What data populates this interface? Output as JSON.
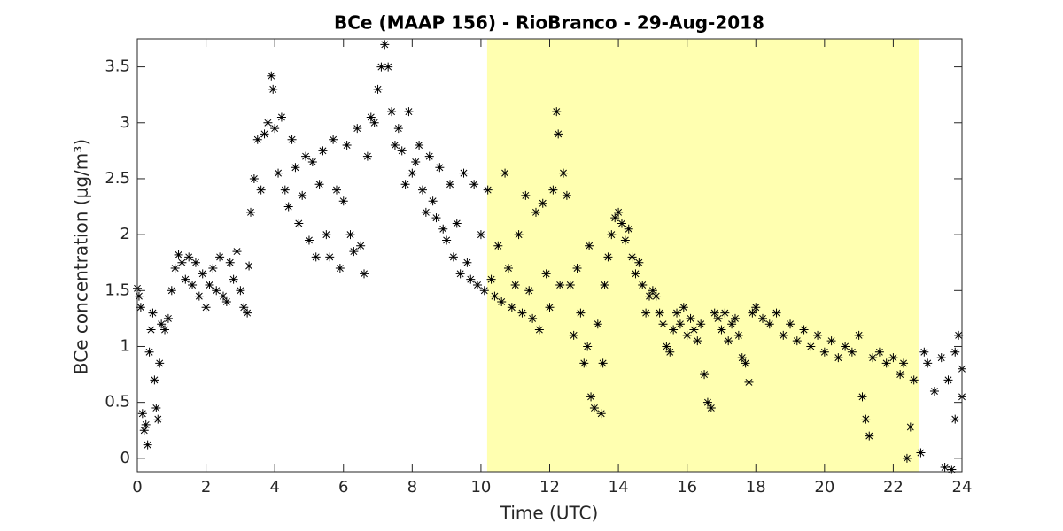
{
  "chart_data": {
    "type": "scatter",
    "title": "BCe (MAAP 156) - RioBranco - 29-Aug-2018",
    "x_label": "Time (UTC)",
    "y_label": "BCe concentration (μg/m³)",
    "xlim": [
      0,
      24
    ],
    "ylim": [
      -0.12,
      3.75
    ],
    "xticks": [
      0,
      2,
      4,
      6,
      8,
      10,
      12,
      14,
      16,
      18,
      20,
      22,
      24
    ],
    "yticks": [
      0,
      0.5,
      1,
      1.5,
      2,
      2.5,
      3,
      3.5
    ],
    "shade": [
      10.18,
      22.76
    ],
    "shade_color": "#ffffb0",
    "color": "#000000",
    "x": [
      0.0,
      0.05,
      0.1,
      0.15,
      0.2,
      0.25,
      0.3,
      0.35,
      0.4,
      0.45,
      0.5,
      0.55,
      0.6,
      0.65,
      0.7,
      0.8,
      0.9,
      1.0,
      1.1,
      1.2,
      1.3,
      1.4,
      1.5,
      1.6,
      1.7,
      1.8,
      1.9,
      2.0,
      2.1,
      2.2,
      2.3,
      2.4,
      2.5,
      2.6,
      2.7,
      2.8,
      2.9,
      3.0,
      3.1,
      3.2,
      3.25,
      3.3,
      3.4,
      3.5,
      3.6,
      3.7,
      3.8,
      3.9,
      3.95,
      4.0,
      4.1,
      4.2,
      4.3,
      4.4,
      4.5,
      4.6,
      4.7,
      4.8,
      4.9,
      5.0,
      5.1,
      5.2,
      5.3,
      5.4,
      5.5,
      5.6,
      5.7,
      5.8,
      5.9,
      6.0,
      6.1,
      6.2,
      6.3,
      6.4,
      6.5,
      6.6,
      6.7,
      6.8,
      6.9,
      7.0,
      7.1,
      7.2,
      7.3,
      7.4,
      7.5,
      7.6,
      7.7,
      7.8,
      7.9,
      8.0,
      8.1,
      8.2,
      8.3,
      8.4,
      8.5,
      8.6,
      8.7,
      8.8,
      8.9,
      9.0,
      9.1,
      9.2,
      9.3,
      9.4,
      9.5,
      9.6,
      9.7,
      9.8,
      9.9,
      10.0,
      10.1,
      10.2,
      10.3,
      10.4,
      10.5,
      10.6,
      10.7,
      10.8,
      10.9,
      11.0,
      11.1,
      11.2,
      11.3,
      11.4,
      11.5,
      11.6,
      11.7,
      11.8,
      11.9,
      12.0,
      12.1,
      12.2,
      12.25,
      12.3,
      12.4,
      12.5,
      12.6,
      12.7,
      12.8,
      12.9,
      13.0,
      13.1,
      13.15,
      13.2,
      13.3,
      13.4,
      13.5,
      13.55,
      13.6,
      13.7,
      13.8,
      13.9,
      14.0,
      14.1,
      14.2,
      14.3,
      14.4,
      14.5,
      14.6,
      14.7,
      14.8,
      14.9,
      15.0,
      15.1,
      15.2,
      15.3,
      15.4,
      15.5,
      15.6,
      15.7,
      15.8,
      15.9,
      16.0,
      16.1,
      16.2,
      16.3,
      16.4,
      16.5,
      16.6,
      16.7,
      16.8,
      16.9,
      17.0,
      17.1,
      17.2,
      17.3,
      17.4,
      17.5,
      17.6,
      17.7,
      17.8,
      17.9,
      18.0,
      18.2,
      18.4,
      18.6,
      18.8,
      19.0,
      19.2,
      19.4,
      19.6,
      19.8,
      20.0,
      20.2,
      20.4,
      20.6,
      20.8,
      21.0,
      21.1,
      21.2,
      21.3,
      21.4,
      21.6,
      21.8,
      22.0,
      22.2,
      22.3,
      22.4,
      22.5,
      22.6,
      22.8,
      22.9,
      23.0,
      23.2,
      23.4,
      23.5,
      23.6,
      23.7,
      23.8,
      23.8,
      23.9,
      24.0,
      24.0
    ],
    "values": [
      1.52,
      1.45,
      1.35,
      0.4,
      0.25,
      0.3,
      0.12,
      0.95,
      1.15,
      1.3,
      0.7,
      0.45,
      0.35,
      0.85,
      1.2,
      1.15,
      1.25,
      1.5,
      1.7,
      1.82,
      1.75,
      1.6,
      1.8,
      1.55,
      1.75,
      1.45,
      1.65,
      1.35,
      1.55,
      1.7,
      1.5,
      1.8,
      1.45,
      1.4,
      1.75,
      1.6,
      1.85,
      1.5,
      1.35,
      1.3,
      1.72,
      2.2,
      2.5,
      2.85,
      2.4,
      2.9,
      3.0,
      3.42,
      3.3,
      2.95,
      2.55,
      3.05,
      2.4,
      2.25,
      2.85,
      2.6,
      2.1,
      2.35,
      2.7,
      1.95,
      2.65,
      1.8,
      2.45,
      2.75,
      2.0,
      1.8,
      2.85,
      2.4,
      1.7,
      2.3,
      2.8,
      2.0,
      1.85,
      2.95,
      1.9,
      1.65,
      2.7,
      3.05,
      3.0,
      3.3,
      3.5,
      3.7,
      3.5,
      3.1,
      2.8,
      2.95,
      2.75,
      2.45,
      3.1,
      2.55,
      2.65,
      2.8,
      2.4,
      2.2,
      2.7,
      2.3,
      2.15,
      2.6,
      2.05,
      1.95,
      2.45,
      1.8,
      2.1,
      1.65,
      2.55,
      1.75,
      1.6,
      2.45,
      1.55,
      2.0,
      1.5,
      2.4,
      1.6,
      1.45,
      1.9,
      1.4,
      2.55,
      1.7,
      1.35,
      1.55,
      2.0,
      1.3,
      2.35,
      1.5,
      1.25,
      2.2,
      1.15,
      2.28,
      1.65,
      1.35,
      2.4,
      3.1,
      2.9,
      1.55,
      2.55,
      2.35,
      1.55,
      1.1,
      1.7,
      1.3,
      0.85,
      1.0,
      1.9,
      0.55,
      0.45,
      1.2,
      0.4,
      0.85,
      1.55,
      1.8,
      2.0,
      2.15,
      2.2,
      2.1,
      1.95,
      2.05,
      1.8,
      1.65,
      1.75,
      1.55,
      1.3,
      1.45,
      1.5,
      1.45,
      1.3,
      1.2,
      1.0,
      0.95,
      1.15,
      1.3,
      1.2,
      1.35,
      1.1,
      1.25,
      1.15,
      1.05,
      1.2,
      0.75,
      0.5,
      0.45,
      1.3,
      1.25,
      1.15,
      1.3,
      1.05,
      1.2,
      1.25,
      1.1,
      0.9,
      0.85,
      0.68,
      1.3,
      1.35,
      1.25,
      1.2,
      1.3,
      1.1,
      1.2,
      1.05,
      1.15,
      1.0,
      1.1,
      0.95,
      1.05,
      0.9,
      1.0,
      0.95,
      1.1,
      0.55,
      0.35,
      0.2,
      0.9,
      0.95,
      0.85,
      0.9,
      0.75,
      0.85,
      0.0,
      0.28,
      0.7,
      0.05,
      0.95,
      0.85,
      0.6,
      0.9,
      -0.08,
      0.7,
      -0.1,
      0.95,
      0.35,
      1.1,
      0.8,
      0.55
    ]
  }
}
